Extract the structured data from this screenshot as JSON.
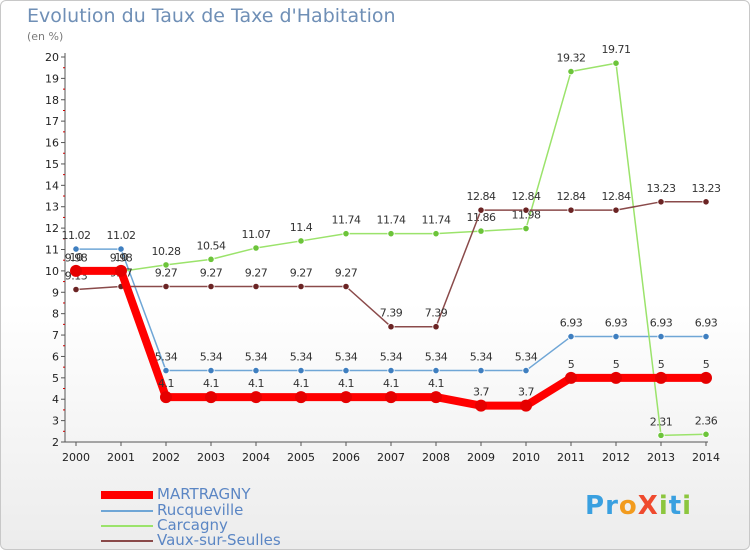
{
  "header": {
    "title": "Evolution du Taux de Taxe d'Habitation",
    "unit": "(en %)"
  },
  "chart_data": {
    "type": "line",
    "x": [
      2000,
      2001,
      2002,
      2003,
      2004,
      2005,
      2006,
      2007,
      2008,
      2009,
      2010,
      2011,
      2012,
      2013,
      2014
    ],
    "yticks": [
      2,
      3,
      4,
      5,
      6,
      7,
      8,
      9,
      10,
      11,
      12,
      13,
      14,
      15,
      16,
      17,
      18,
      19,
      20
    ],
    "ylim": [
      2,
      20
    ],
    "grid": false,
    "legend_position": "bottom-left",
    "series": [
      {
        "name": "Rucqueville",
        "color": "#6fa6d6",
        "point_color": "#3f7fc0",
        "values": [
          11.02,
          11.02,
          5.34,
          5.34,
          5.34,
          5.34,
          5.34,
          5.34,
          5.34,
          5.34,
          5.34,
          6.93,
          6.93,
          6.93,
          6.93
        ],
        "labels": [
          "11.02",
          "11.02",
          "5.34",
          "5.34",
          "5.34",
          "5.34",
          "5.34",
          "5.34",
          "5.34",
          "5.34",
          "5.34",
          "6.93",
          "6.93",
          "6.93",
          "6.93"
        ]
      },
      {
        "name": "Carcagny",
        "color": "#9be36b",
        "point_color": "#6cc43a",
        "values": [
          9.98,
          9.98,
          10.28,
          10.54,
          11.07,
          11.4,
          11.74,
          11.74,
          11.74,
          11.86,
          11.98,
          19.32,
          19.71,
          2.31,
          2.36
        ],
        "labels": [
          "9.98",
          "9.98",
          "10.28",
          "10.54",
          "11.07",
          "11.4",
          "11.74",
          "11.74",
          "11.74",
          "11.86",
          "11.98",
          "19.32",
          "19.71",
          "2.31",
          "2.36"
        ]
      },
      {
        "name": "Vaux-sur-Seulles",
        "color": "#8a4a4a",
        "point_color": "#6b2424",
        "values": [
          9.13,
          9.27,
          9.27,
          9.27,
          9.27,
          9.27,
          9.27,
          7.39,
          7.39,
          12.84,
          12.84,
          12.84,
          12.84,
          13.23,
          13.23
        ],
        "labels": [
          "9.13",
          "9.27",
          "9.27",
          "9.27",
          "9.27",
          "9.27",
          "9.27",
          "7.39",
          "7.39",
          "12.84",
          "12.84",
          "12.84",
          "12.84",
          "13.23",
          "13.23"
        ]
      },
      {
        "name": "MARTRAGNY",
        "color": "#ff0000",
        "point_color": "#e60000",
        "values": [
          10,
          10,
          4.1,
          4.1,
          4.1,
          4.1,
          4.1,
          4.1,
          4.1,
          3.7,
          3.7,
          5,
          5,
          5,
          5
        ],
        "labels": [
          "10",
          "10",
          "4.1",
          "4.1",
          "4.1",
          "4.1",
          "4.1",
          "4.1",
          "4.1",
          "3.7",
          "3.7",
          "5",
          "5",
          "5",
          "5"
        ]
      }
    ],
    "legend": [
      "MARTRAGNY",
      "Rucqueville",
      "Carcagny",
      "Vaux-sur-Seulles"
    ]
  },
  "legend_colors": {
    "MARTRAGNY": "#ff0000",
    "Rucqueville": "#6fa6d6",
    "Carcagny": "#9be36b",
    "Vaux-sur-Seulles": "#8a4a4a"
  },
  "logo": {
    "text": "ProXiti",
    "letters": [
      "P",
      "r",
      "o",
      "X",
      "i",
      "t",
      "i"
    ],
    "colors": [
      "#3aa0e0",
      "#3aa0e0",
      "#f29b1d",
      "#ef4a2e",
      "#8cc63e",
      "#3aa0e0",
      "#8cc63e"
    ]
  }
}
